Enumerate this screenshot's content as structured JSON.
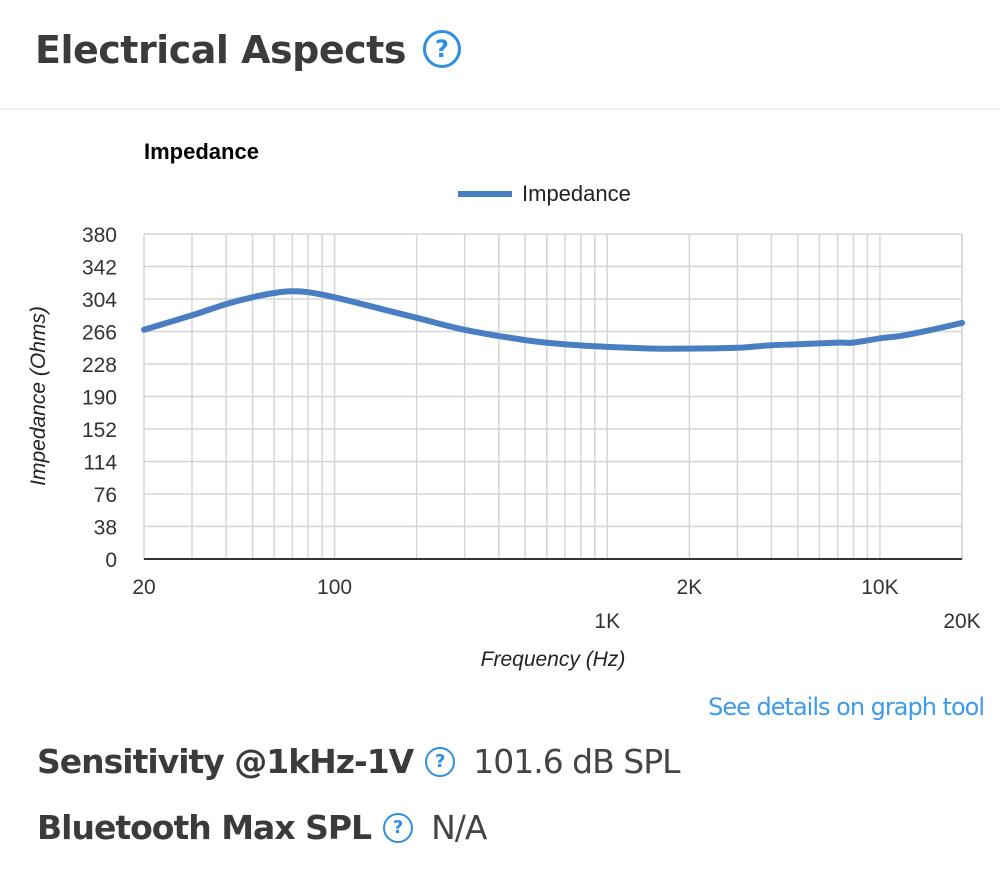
{
  "section": {
    "title": "Electrical Aspects",
    "help_icon": "question-circle-icon"
  },
  "chart_data": {
    "type": "line",
    "title": "Impedance",
    "xlabel": "Frequency (Hz)",
    "ylabel": "Impedance (Ohms)",
    "x_scale": "log",
    "xlim": [
      20,
      20000
    ],
    "ylim": [
      0,
      380
    ],
    "y_ticks": [
      0,
      38,
      76,
      114,
      152,
      190,
      228,
      266,
      304,
      342,
      380
    ],
    "x_tick_labels": [
      {
        "value": 20,
        "label": "20",
        "row": 1
      },
      {
        "value": 100,
        "label": "100",
        "row": 1
      },
      {
        "value": 1000,
        "label": "1K",
        "row": 2
      },
      {
        "value": 2000,
        "label": "2K",
        "row": 1
      },
      {
        "value": 10000,
        "label": "10K",
        "row": 1
      },
      {
        "value": 20000,
        "label": "20K",
        "row": 2
      }
    ],
    "grid": true,
    "legend": {
      "position": "top",
      "entries": [
        "Impedance"
      ]
    },
    "series": [
      {
        "name": "Impedance",
        "color": "#4a7ec2",
        "x": [
          20,
          30,
          40,
          50,
          60,
          70,
          80,
          100,
          150,
          200,
          300,
          500,
          700,
          1000,
          1500,
          2000,
          3000,
          4000,
          5000,
          7000,
          8000,
          10000,
          12000,
          15000,
          20000
        ],
        "values": [
          268,
          285,
          298,
          306,
          311,
          313,
          312,
          306,
          292,
          282,
          268,
          256,
          251,
          248,
          246,
          246,
          247,
          250,
          251,
          253,
          253,
          258,
          261,
          267,
          276
        ]
      }
    ]
  },
  "chart_labels": {
    "title": "Impedance",
    "legend_label": "Impedance",
    "xlabel": "Frequency (Hz)",
    "ylabel": "Impedance (Ohms)"
  },
  "link": {
    "label": "See details on graph tool"
  },
  "specs": [
    {
      "label": "Sensitivity @1kHz-1V",
      "value": "101.6 dB SPL"
    },
    {
      "label": "Bluetooth Max SPL",
      "value": "N/A"
    }
  ],
  "colors": {
    "accent": "#2f8fe0",
    "link": "#3d9be9",
    "series": "#4a7ec2",
    "grid": "#d6d6d6",
    "text": "#3b3b3b"
  }
}
